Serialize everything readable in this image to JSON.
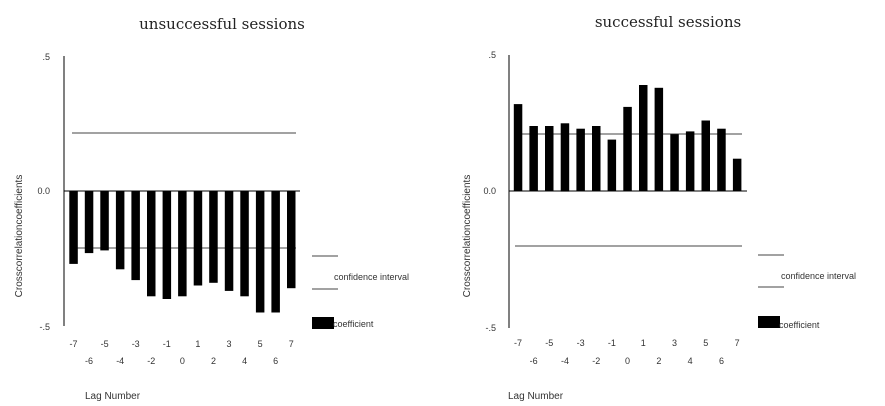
{
  "chart_data": [
    {
      "type": "bar",
      "title": "unsuccessful sessions",
      "xlabel": "Lag Number",
      "ylabel": "Crosscorrelationcoefficients",
      "x": [
        -7,
        -6,
        -5,
        -4,
        -3,
        -2,
        -1,
        0,
        1,
        2,
        3,
        4,
        5,
        6,
        7
      ],
      "x_ticks_row1": [
        "-7",
        "-5",
        "-3",
        "-1",
        "1",
        "3",
        "5",
        "7"
      ],
      "x_ticks_row2": [
        "-6",
        "-4",
        "-2",
        "0",
        "2",
        "4",
        "6"
      ],
      "y_ticks": [
        ".5",
        "0.0",
        "-.5"
      ],
      "ylim": [
        -0.5,
        0.5
      ],
      "values": [
        -0.27,
        -0.23,
        -0.22,
        -0.29,
        -0.33,
        -0.39,
        -0.4,
        -0.39,
        -0.35,
        -0.34,
        -0.37,
        -0.39,
        -0.45,
        -0.45,
        -0.36
      ],
      "confidence_interval": {
        "upper": 0.21,
        "lower": -0.21
      },
      "legend": {
        "ci_label": "confidence interval",
        "coef_label": "coefficient"
      }
    },
    {
      "type": "bar",
      "title": "successful sessions",
      "xlabel": "Lag Number",
      "ylabel": "Crosscorrelationcoefficients",
      "x": [
        -7,
        -6,
        -5,
        -4,
        -3,
        -2,
        -1,
        0,
        1,
        2,
        3,
        4,
        5,
        6,
        7
      ],
      "x_ticks_row1": [
        "-7",
        "-5",
        "-3",
        "-1",
        "1",
        "3",
        "5",
        "7"
      ],
      "x_ticks_row2": [
        "-6",
        "-4",
        "-2",
        "0",
        "2",
        "4",
        "6"
      ],
      "y_ticks": [
        ".5",
        "0.0",
        "-.5"
      ],
      "ylim": [
        -0.5,
        0.5
      ],
      "values": [
        0.32,
        0.24,
        0.24,
        0.25,
        0.23,
        0.24,
        0.19,
        0.31,
        0.39,
        0.38,
        0.21,
        0.22,
        0.26,
        0.23,
        0.12
      ],
      "confidence_interval": {
        "upper": 0.21,
        "lower": -0.21
      },
      "legend": {
        "ci_label": "confidence interval",
        "coef_label": "coefficient"
      }
    }
  ]
}
